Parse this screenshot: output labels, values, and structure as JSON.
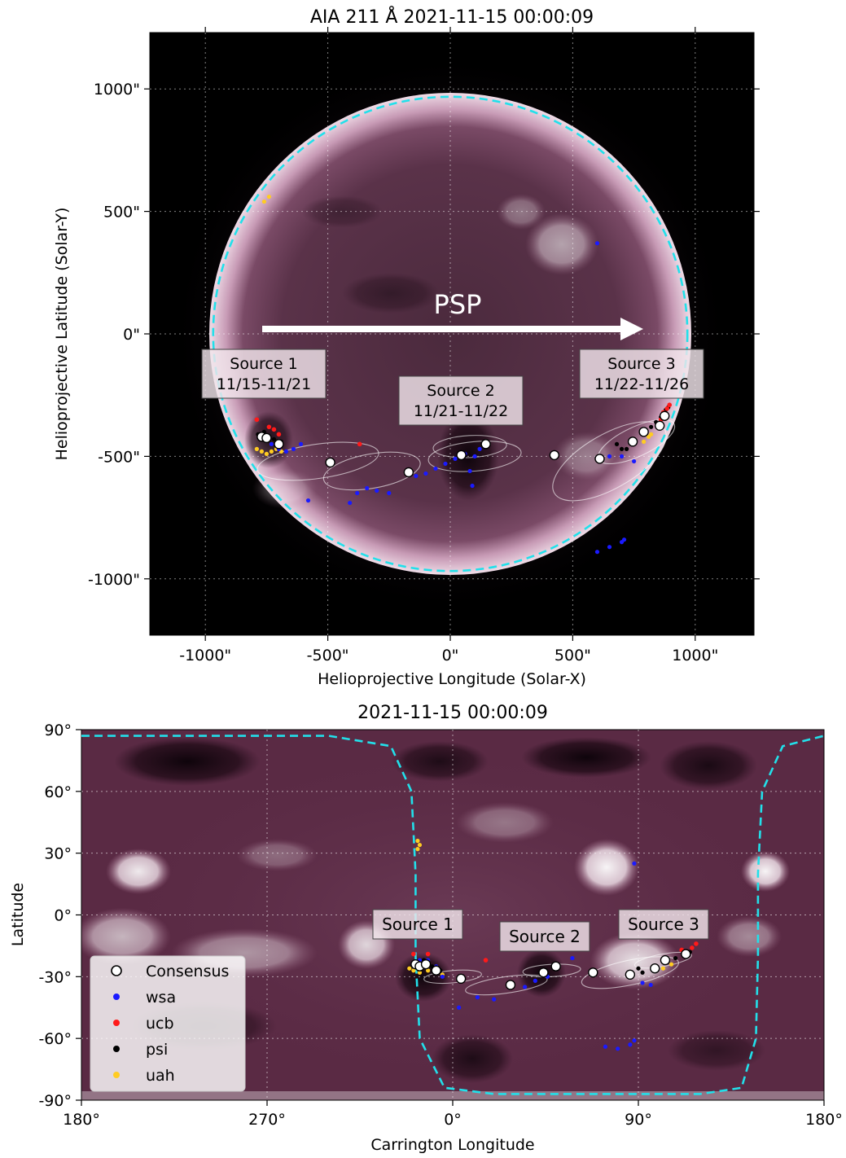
{
  "colors": {
    "limb": "#22e0ea",
    "wsa": "#1a1aff",
    "ucb": "#ff1a1a",
    "psi": "#000000",
    "uah": "#ffcc22",
    "consensus_fill": "#ffffff",
    "disk_bg": "#000000",
    "map_bg": "#5a2a44"
  },
  "chart_data": [
    {
      "type": "scatter",
      "title": "AIA 211 Å 2021-11-15 00:00:09",
      "xlabel": "Helioprojective Longitude (Solar-X)",
      "ylabel": "Helioprojective Latitude (Solar-Y)",
      "xlim": [
        -1230,
        1230
      ],
      "ylim": [
        -1230,
        1230
      ],
      "xticks": [
        -1000,
        -500,
        0,
        500,
        1000
      ],
      "yticks": [
        1000,
        500,
        0,
        -500,
        -1000
      ],
      "tick_labels": {
        "x": [
          "-1000\"",
          "-500\"",
          "0\"",
          "500\"",
          "1000\""
        ],
        "y": [
          "1000\"",
          "500\"",
          "0\"",
          "-500\"",
          "-1000\""
        ]
      },
      "grid": true,
      "disk_radius": 968,
      "arrow": {
        "label": "PSP",
        "from": [
          -760,
          20
        ],
        "to": [
          790,
          20
        ]
      },
      "sources": [
        {
          "name": "Source 1",
          "dates": "11/15-11/21",
          "x": -850,
          "y": -160
        },
        {
          "name": "Source 2",
          "dates": "11/21-11/22",
          "x": 55,
          "y": -270
        },
        {
          "name": "Source 3",
          "dates": "11/22-11/26",
          "x": 800,
          "y": -160
        }
      ],
      "consensus": [
        [
          -770,
          -420
        ],
        [
          -750,
          -425
        ],
        [
          -700,
          -450
        ],
        [
          -490,
          -525
        ],
        [
          -170,
          -565
        ],
        [
          45,
          -495
        ],
        [
          145,
          -450
        ],
        [
          425,
          -495
        ],
        [
          610,
          -510
        ],
        [
          745,
          -440
        ],
        [
          790,
          -400
        ],
        [
          855,
          -375
        ],
        [
          875,
          -335
        ]
      ],
      "wsa": [
        [
          -760,
          -430
        ],
        [
          -730,
          -450
        ],
        [
          -700,
          -470
        ],
        [
          -670,
          -480
        ],
        [
          -640,
          -470
        ],
        [
          -610,
          -450
        ],
        [
          -580,
          -680
        ],
        [
          -410,
          -690
        ],
        [
          -380,
          -650
        ],
        [
          -340,
          -630
        ],
        [
          -300,
          -640
        ],
        [
          -250,
          -650
        ],
        [
          -140,
          -580
        ],
        [
          -100,
          -570
        ],
        [
          -60,
          -550
        ],
        [
          -20,
          -530
        ],
        [
          20,
          -510
        ],
        [
          60,
          -490
        ],
        [
          100,
          -500
        ],
        [
          120,
          -470
        ],
        [
          80,
          -560
        ],
        [
          90,
          -620
        ],
        [
          600,
          -890
        ],
        [
          650,
          -870
        ],
        [
          700,
          -850
        ],
        [
          710,
          -840
        ],
        [
          600,
          370
        ],
        [
          650,
          -500
        ],
        [
          750,
          -520
        ],
        [
          700,
          -500
        ]
      ],
      "ucb": [
        [
          -790,
          -350
        ],
        [
          -740,
          -380
        ],
        [
          -720,
          -390
        ],
        [
          -700,
          -410
        ],
        [
          -370,
          -450
        ],
        [
          870,
          -320
        ],
        [
          885,
          -305
        ],
        [
          895,
          -290
        ],
        [
          860,
          -350
        ]
      ],
      "psi": [
        [
          -785,
          -410
        ],
        [
          -760,
          -400
        ],
        [
          -740,
          -420
        ],
        [
          -720,
          -430
        ],
        [
          -690,
          -440
        ],
        [
          820,
          -380
        ],
        [
          840,
          -360
        ],
        [
          860,
          -340
        ],
        [
          880,
          -310
        ],
        [
          890,
          -300
        ],
        [
          680,
          -450
        ],
        [
          700,
          -470
        ],
        [
          720,
          -470
        ]
      ],
      "uah": [
        [
          -790,
          -470
        ],
        [
          -770,
          -480
        ],
        [
          -750,
          -490
        ],
        [
          -730,
          -480
        ],
        [
          -710,
          -470
        ],
        [
          -690,
          -480
        ],
        [
          -760,
          540
        ],
        [
          -740,
          560
        ],
        [
          790,
          -440
        ],
        [
          810,
          -420
        ],
        [
          820,
          -410
        ]
      ]
    },
    {
      "type": "scatter",
      "title": "2021-11-15 00:00:09",
      "xlabel": "Carrington Longitude",
      "ylabel": "Latitude",
      "xlim": [
        180,
        540
      ],
      "ylim": [
        -90,
        90
      ],
      "xticks": [
        180,
        270,
        360,
        450,
        540
      ],
      "yticks": [
        90,
        60,
        30,
        0,
        -30,
        -60,
        -90
      ],
      "tick_labels": {
        "x": [
          "180°",
          "270°",
          "0°",
          "90°",
          "180°"
        ],
        "y": [
          "90°",
          "60°",
          "30°",
          "0°",
          "-30°",
          "-60°",
          "-90°"
        ]
      },
      "grid": true,
      "legend": {
        "position": "lower left",
        "entries": [
          "Consensus",
          "wsa",
          "ucb",
          "psi",
          "uah"
        ]
      },
      "sources": [
        {
          "name": "Source 1",
          "x": 353,
          "y": 0
        },
        {
          "name": "Source 2",
          "x": 404,
          "y": -10
        },
        {
          "name": "Source 3",
          "x": 475,
          "y": 0
        }
      ],
      "consensus": [
        [
          342,
          -24
        ],
        [
          344,
          -25
        ],
        [
          347,
          -24
        ],
        [
          352,
          -27
        ],
        [
          364,
          -31
        ],
        [
          388,
          -34
        ],
        [
          404,
          -28
        ],
        [
          410,
          -25
        ],
        [
          428,
          -28
        ],
        [
          446,
          -29
        ],
        [
          458,
          -26
        ],
        [
          463,
          -22
        ],
        [
          473,
          -19
        ]
      ],
      "wsa": [
        [
          344,
          -22
        ],
        [
          348,
          -22
        ],
        [
          352,
          -25
        ],
        [
          355,
          -30
        ],
        [
          363,
          -45
        ],
        [
          372,
          -40
        ],
        [
          380,
          -41
        ],
        [
          395,
          -35
        ],
        [
          400,
          -32
        ],
        [
          406,
          -30
        ],
        [
          418,
          -21
        ],
        [
          434,
          -64
        ],
        [
          440,
          -65
        ],
        [
          446,
          -63
        ],
        [
          448,
          -61
        ],
        [
          452,
          -33
        ],
        [
          456,
          -34
        ],
        [
          448,
          25
        ]
      ],
      "ucb": [
        [
          341,
          -19
        ],
        [
          348,
          -19
        ],
        [
          376,
          -22
        ],
        [
          473,
          -18
        ],
        [
          476,
          -16
        ],
        [
          478,
          -14
        ],
        [
          471,
          -17
        ]
      ],
      "psi": [
        [
          342,
          -23
        ],
        [
          346,
          -22
        ],
        [
          350,
          -25
        ],
        [
          354,
          -27
        ],
        [
          464,
          -23
        ],
        [
          468,
          -21
        ],
        [
          472,
          -19
        ],
        [
          475,
          -18
        ],
        [
          450,
          -26
        ],
        [
          452,
          -28
        ]
      ],
      "uah": [
        [
          339,
          -26
        ],
        [
          341,
          -27
        ],
        [
          344,
          -28
        ],
        [
          348,
          -27
        ],
        [
          352,
          -28
        ],
        [
          355,
          -29
        ],
        [
          343,
          36
        ],
        [
          344,
          34
        ],
        [
          343,
          32
        ],
        [
          462,
          -26
        ],
        [
          466,
          -24
        ]
      ],
      "limb_curve": [
        [
          180,
          87
        ],
        [
          300,
          87
        ],
        [
          330,
          82
        ],
        [
          340,
          60
        ],
        [
          342,
          20
        ],
        [
          342,
          -20
        ],
        [
          344,
          -60
        ],
        [
          356,
          -84
        ],
        [
          380,
          -87
        ],
        [
          480,
          -87
        ],
        [
          500,
          -84
        ],
        [
          507,
          -60
        ],
        [
          508,
          -20
        ],
        [
          508,
          20
        ],
        [
          510,
          60
        ],
        [
          520,
          82
        ],
        [
          540,
          87
        ]
      ]
    }
  ]
}
